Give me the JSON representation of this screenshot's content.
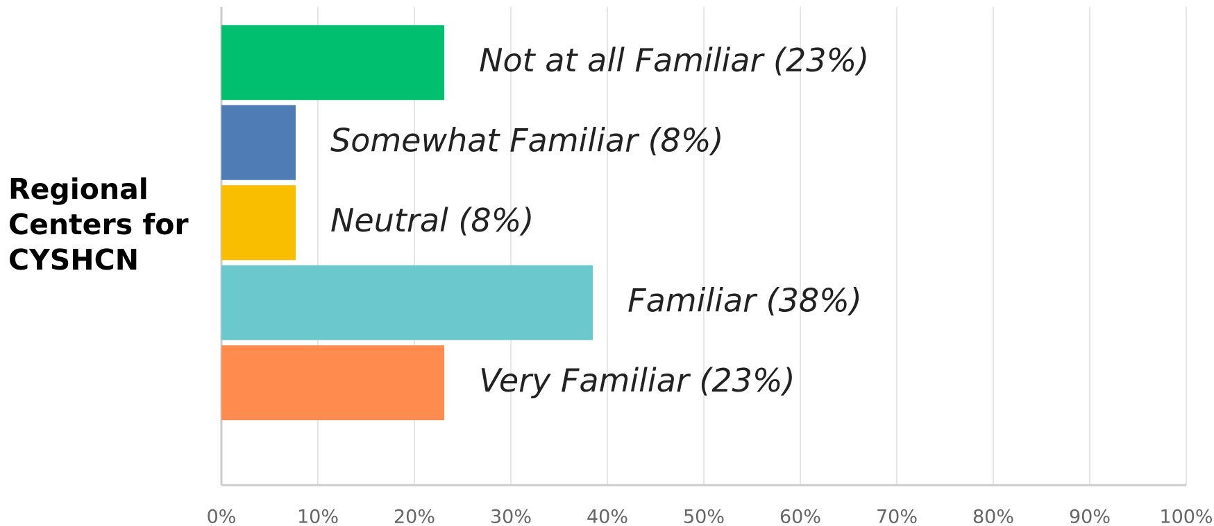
{
  "chart_data": {
    "type": "bar",
    "orientation": "horizontal",
    "categories": [
      "Regional Centers for CYSHCN"
    ],
    "series": [
      {
        "name": "Not at all Familiar",
        "color": "#00bf6f",
        "values": [
          23.1
        ],
        "value_labels": [
          "Not at all Familiar (23%)"
        ]
      },
      {
        "name": "Somewhat Familiar",
        "color": "#507cb6",
        "values": [
          7.7
        ],
        "value_labels": [
          "Somewhat Familiar (8%)"
        ]
      },
      {
        "name": "Neutral",
        "color": "#f9be00",
        "values": [
          7.7
        ],
        "value_labels": [
          "Neutral (8%)"
        ]
      },
      {
        "name": "Familiar",
        "color": "#6bc8cd",
        "values": [
          38.5
        ],
        "value_labels": [
          "Familiar (38%)"
        ]
      },
      {
        "name": "Very Familiar",
        "color": "#ff8b4f",
        "values": [
          23.1
        ],
        "value_labels": [
          "Very Familiar (23%)"
        ]
      }
    ],
    "xlim": [
      0,
      100
    ],
    "xticks": [
      {
        "value": 0,
        "label": "0%"
      },
      {
        "value": 10,
        "label": "10%"
      },
      {
        "value": 20,
        "label": "20%"
      },
      {
        "value": 30,
        "label": "30%"
      },
      {
        "value": 40,
        "label": "40%"
      },
      {
        "value": 50,
        "label": "50%"
      },
      {
        "value": 60,
        "label": "60%"
      },
      {
        "value": 70,
        "label": "70%"
      },
      {
        "value": 80,
        "label": "80%"
      },
      {
        "value": 90,
        "label": "90%"
      },
      {
        "value": 100,
        "label": "100%"
      }
    ],
    "grid": true
  }
}
